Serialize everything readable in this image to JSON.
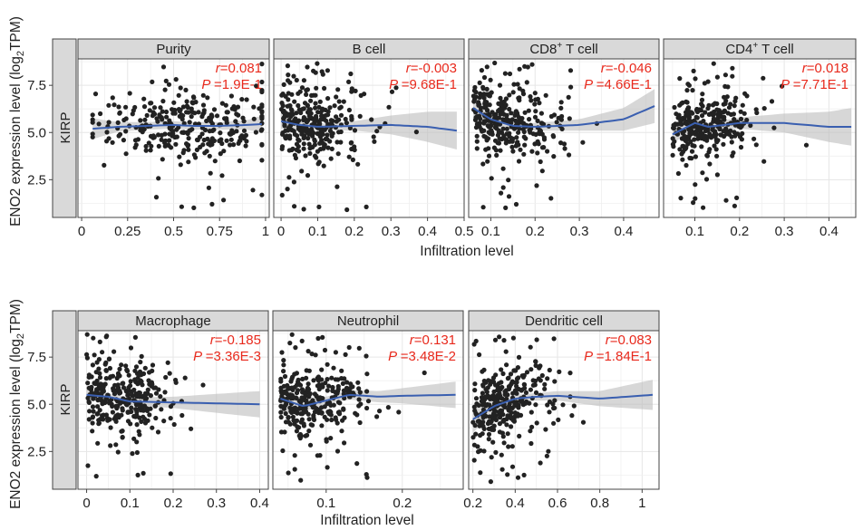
{
  "figure": {
    "ylabel_main": "ENO2 expression level (log",
    "ylabel_sub": "2",
    "ylabel_tail": "TPM)",
    "xlabel": "Infiltration level",
    "strip_label": "KIRP"
  },
  "colors": {
    "point": "#222222",
    "smooth": "#3a5fb0",
    "band": "#bdbdbd",
    "stat_text": "#e8291c",
    "strip_bg": "#d9d9d9",
    "grid": "#e6e6e6"
  },
  "chart_data": [
    {
      "type": "scatter",
      "title": "Purity",
      "title_sup": "",
      "r": "=0.081",
      "p": "=1.9E-1",
      "xlim": [
        -0.02,
        1.02
      ],
      "ylim": [
        0.5,
        8.9
      ],
      "x_ticks": [
        0,
        0.25,
        0.5,
        0.75,
        1
      ],
      "x_tick_labels": [
        "0",
        "0.25",
        "0.5",
        "0.75",
        "1"
      ],
      "y_ticks": [
        2.5,
        5.0,
        7.5
      ],
      "y_tick_labels": [
        "2.5",
        "5.0",
        "7.5"
      ],
      "x_range": [
        0.06,
        0.98
      ],
      "y_base": 5.3,
      "smooth": [
        [
          0.06,
          5.2
        ],
        [
          0.2,
          5.3
        ],
        [
          0.35,
          5.35
        ],
        [
          0.5,
          5.4
        ],
        [
          0.6,
          5.35
        ],
        [
          0.75,
          5.35
        ],
        [
          0.9,
          5.4
        ],
        [
          0.98,
          5.45
        ]
      ],
      "band": [
        0.55,
        0.25,
        0.2,
        0.2,
        0.2,
        0.2,
        0.25,
        0.45
      ]
    },
    {
      "type": "scatter",
      "title": "B cell",
      "title_sup": "",
      "r": "=-0.003",
      "p": "=9.68E-1",
      "xlim": [
        -0.02,
        0.5
      ],
      "ylim": [
        0.5,
        8.9
      ],
      "x_ticks": [
        0,
        0.1,
        0.2,
        0.3,
        0.4,
        0.5
      ],
      "x_tick_labels": [
        "0",
        "0.1",
        "0.2",
        "0.3",
        "0.4",
        "0.5"
      ],
      "y_ticks": [
        2.5,
        5.0,
        7.5
      ],
      "y_tick_labels": [
        "2.5",
        "5.0",
        "7.5"
      ],
      "x_range": [
        0.0,
        0.48
      ],
      "y_base": 5.3,
      "smooth": [
        [
          0.0,
          5.6
        ],
        [
          0.05,
          5.4
        ],
        [
          0.1,
          5.3
        ],
        [
          0.2,
          5.35
        ],
        [
          0.3,
          5.4
        ],
        [
          0.4,
          5.3
        ],
        [
          0.48,
          5.1
        ]
      ],
      "band": [
        0.4,
        0.2,
        0.15,
        0.25,
        0.5,
        0.8,
        1.0
      ]
    },
    {
      "type": "scatter",
      "title": "CD8",
      "title_sup": "+",
      "title_tail": " T cell",
      "r": "=-0.046",
      "p": "=4.66E-1",
      "xlim": [
        0.05,
        0.48
      ],
      "ylim": [
        0.5,
        8.9
      ],
      "x_ticks": [
        0.1,
        0.2,
        0.3,
        0.4
      ],
      "x_tick_labels": [
        "0.1",
        "0.2",
        "0.3",
        "0.4"
      ],
      "y_ticks": [
        2.5,
        5.0,
        7.5
      ],
      "y_tick_labels": [
        "2.5",
        "5.0",
        "7.5"
      ],
      "x_range": [
        0.06,
        0.47
      ],
      "y_base": 5.3,
      "smooth": [
        [
          0.06,
          6.3
        ],
        [
          0.1,
          5.7
        ],
        [
          0.15,
          5.35
        ],
        [
          0.2,
          5.3
        ],
        [
          0.3,
          5.4
        ],
        [
          0.4,
          5.7
        ],
        [
          0.47,
          6.4
        ]
      ],
      "band": [
        0.7,
        0.35,
        0.2,
        0.2,
        0.3,
        0.6,
        0.9
      ]
    },
    {
      "type": "scatter",
      "title": "CD4",
      "title_sup": "+",
      "title_tail": " T cell",
      "r": "=0.018",
      "p": "=7.71E-1",
      "xlim": [
        0.03,
        0.46
      ],
      "ylim": [
        0.5,
        8.9
      ],
      "x_ticks": [
        0.1,
        0.2,
        0.3,
        0.4
      ],
      "x_tick_labels": [
        "0.1",
        "0.2",
        "0.3",
        "0.4"
      ],
      "y_ticks": [
        2.5,
        5.0,
        7.5
      ],
      "y_tick_labels": [
        "2.5",
        "5.0",
        "7.5"
      ],
      "x_range": [
        0.05,
        0.45
      ],
      "y_base": 5.2,
      "smooth": [
        [
          0.05,
          4.9
        ],
        [
          0.1,
          5.5
        ],
        [
          0.13,
          5.3
        ],
        [
          0.2,
          5.5
        ],
        [
          0.3,
          5.5
        ],
        [
          0.4,
          5.3
        ],
        [
          0.45,
          5.3
        ]
      ],
      "band": [
        0.5,
        0.25,
        0.2,
        0.3,
        0.5,
        0.8,
        1.0
      ]
    },
    {
      "type": "scatter",
      "title": "Macrophage",
      "title_sup": "",
      "r": "=-0.185",
      "p": "=3.36E-3",
      "xlim": [
        -0.02,
        0.42
      ],
      "ylim": [
        0.5,
        8.9
      ],
      "x_ticks": [
        0,
        0.1,
        0.2,
        0.3,
        0.4
      ],
      "x_tick_labels": [
        "0",
        "0.1",
        "0.2",
        "0.3",
        "0.4"
      ],
      "y_ticks": [
        2.5,
        5.0,
        7.5
      ],
      "y_tick_labels": [
        "2.5",
        "5.0",
        "7.5"
      ],
      "x_range": [
        0.0,
        0.4
      ],
      "y_base": 5.2,
      "smooth": [
        [
          0.0,
          5.5
        ],
        [
          0.05,
          5.4
        ],
        [
          0.1,
          5.15
        ],
        [
          0.2,
          5.1
        ],
        [
          0.3,
          5.05
        ],
        [
          0.4,
          5.0
        ]
      ],
      "band": [
        0.3,
        0.2,
        0.2,
        0.3,
        0.5,
        0.7
      ]
    },
    {
      "type": "scatter",
      "title": "Neutrophil",
      "title_sup": "",
      "r": "=0.131",
      "p": "=3.48E-2",
      "xlim": [
        0.03,
        0.28
      ],
      "ylim": [
        0.5,
        8.9
      ],
      "x_ticks": [
        0.1,
        0.2
      ],
      "x_tick_labels": [
        "0.1",
        "0.2"
      ],
      "y_ticks": [
        2.5,
        5.0,
        7.5
      ],
      "y_tick_labels": [
        "2.5",
        "5.0",
        "7.5"
      ],
      "x_range": [
        0.04,
        0.27
      ],
      "y_base": 5.2,
      "smooth": [
        [
          0.04,
          5.3
        ],
        [
          0.07,
          4.9
        ],
        [
          0.1,
          5.2
        ],
        [
          0.13,
          5.5
        ],
        [
          0.17,
          5.4
        ],
        [
          0.2,
          5.45
        ],
        [
          0.27,
          5.5
        ]
      ],
      "band": [
        0.7,
        0.3,
        0.2,
        0.25,
        0.3,
        0.4,
        0.7
      ]
    },
    {
      "type": "scatter",
      "title": "Dendritic cell",
      "title_sup": "",
      "r": "=0.083",
      "p": "=1.84E-1",
      "xlim": [
        0.18,
        1.08
      ],
      "ylim": [
        0.5,
        8.9
      ],
      "x_ticks": [
        0.2,
        0.4,
        0.6,
        0.8,
        1
      ],
      "x_tick_labels": [
        "0.2",
        "0.4",
        "0.6",
        "0.8",
        "1"
      ],
      "y_ticks": [
        2.5,
        5.0,
        7.5
      ],
      "y_tick_labels": [
        "2.5",
        "5.0",
        "7.5"
      ],
      "x_range": [
        0.2,
        1.05
      ],
      "y_base": 5.3,
      "smooth": [
        [
          0.2,
          4.2
        ],
        [
          0.3,
          4.9
        ],
        [
          0.4,
          5.3
        ],
        [
          0.5,
          5.4
        ],
        [
          0.6,
          5.45
        ],
        [
          0.8,
          5.3
        ],
        [
          1.05,
          5.5
        ]
      ],
      "band": [
        0.7,
        0.35,
        0.2,
        0.2,
        0.25,
        0.4,
        0.8
      ]
    }
  ]
}
